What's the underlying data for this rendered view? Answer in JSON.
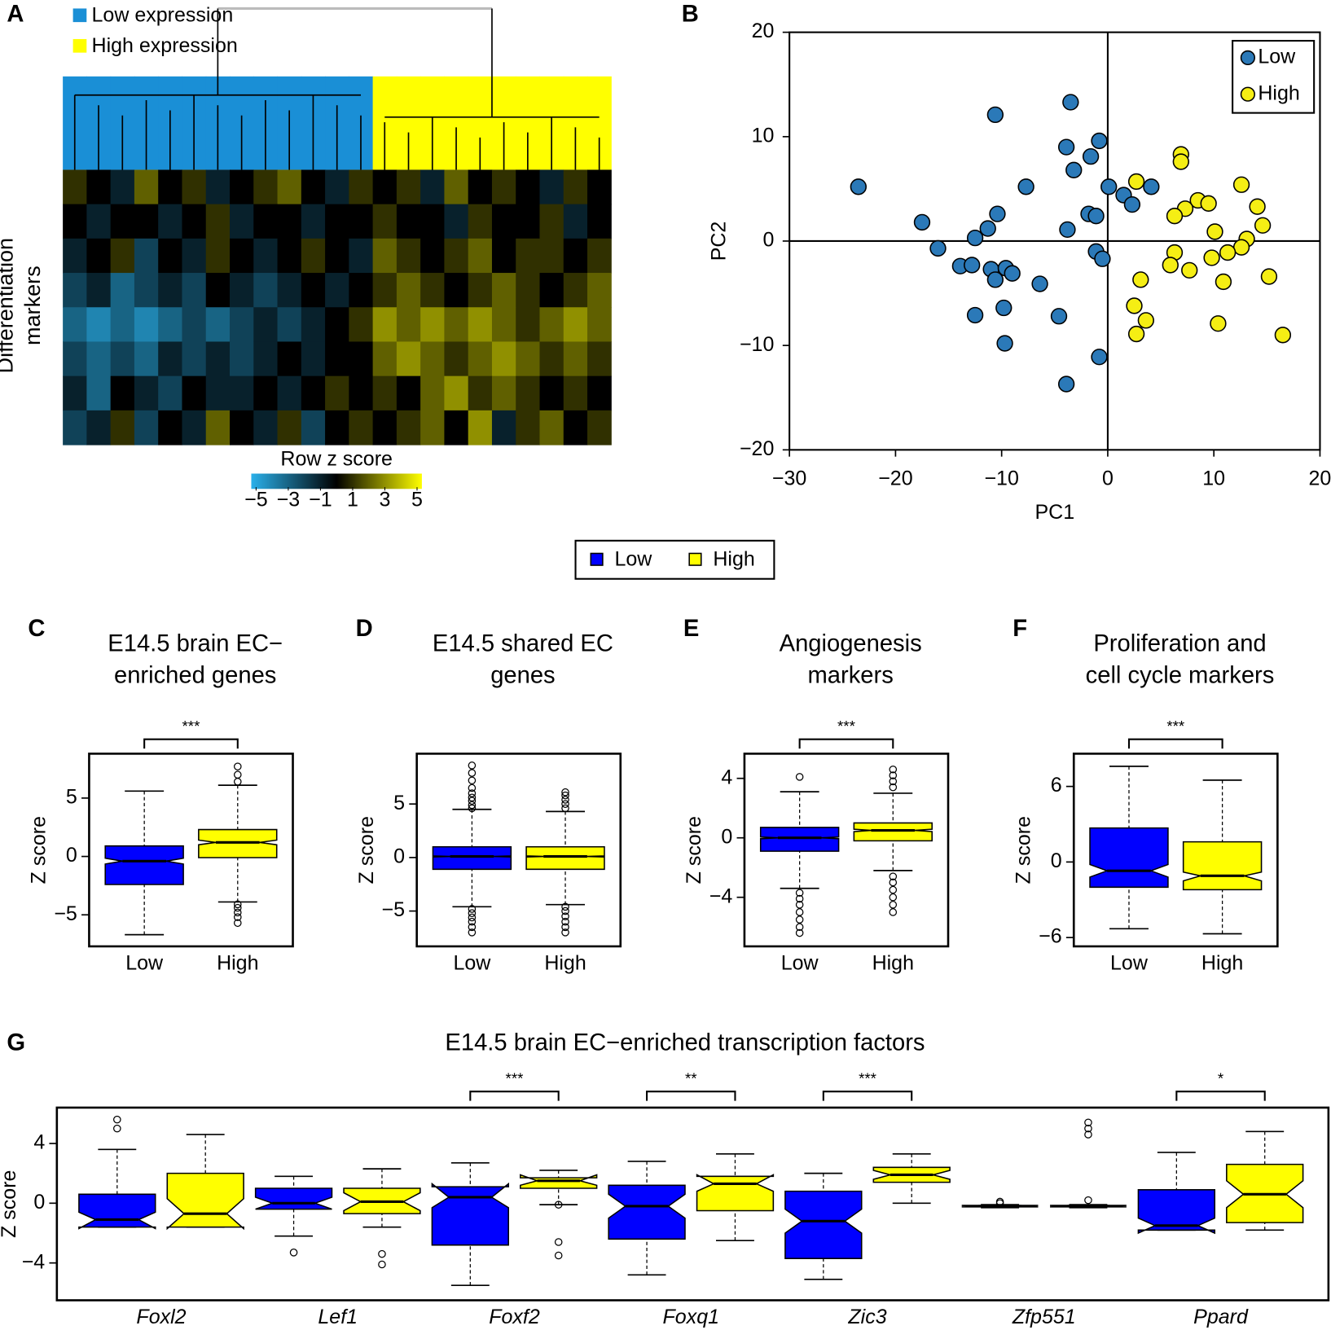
{
  "chart_data": [
    {
      "type": "heatmap",
      "panel": "A",
      "ylabel": [
        "Differentiation",
        "markers"
      ],
      "groups": [
        {
          "name": "Low expression",
          "color": "#1a8fd6"
        },
        {
          "name": "High expression",
          "color": "#ffff00"
        }
      ],
      "column_groups": [
        0,
        0,
        0,
        0,
        0,
        0,
        0,
        0,
        0,
        0,
        0,
        0,
        0,
        1,
        1,
        1,
        1,
        1,
        1,
        1,
        1,
        1,
        1
      ],
      "matrix": [
        [
          1,
          0,
          -1,
          2,
          0,
          1,
          -1,
          0,
          1,
          2,
          0,
          -1,
          1,
          0,
          1,
          -1,
          2,
          0,
          1,
          0,
          -1,
          1,
          0
        ],
        [
          0,
          -1,
          0,
          0,
          -1,
          0,
          1,
          -1,
          0,
          0,
          -1,
          0,
          0,
          1,
          0,
          0,
          -1,
          1,
          0,
          0,
          1,
          -1,
          0
        ],
        [
          -1,
          0,
          1,
          -2,
          0,
          -1,
          1,
          0,
          -1,
          0,
          1,
          0,
          -1,
          2,
          1,
          0,
          1,
          2,
          0,
          1,
          1,
          0,
          1
        ],
        [
          -2,
          -1,
          -3,
          -2,
          -1,
          -2,
          0,
          -1,
          -2,
          -1,
          0,
          -1,
          0,
          1,
          2,
          1,
          0,
          1,
          2,
          1,
          0,
          1,
          2
        ],
        [
          -3,
          -4,
          -3,
          -4,
          -3,
          -2,
          -3,
          -2,
          -1,
          -2,
          -1,
          0,
          1,
          3,
          2,
          3,
          2,
          3,
          2,
          1,
          2,
          3,
          2
        ],
        [
          -2,
          -3,
          -2,
          -3,
          -1,
          -2,
          -1,
          -2,
          -1,
          0,
          -1,
          0,
          0,
          2,
          3,
          2,
          1,
          2,
          3,
          2,
          1,
          2,
          1
        ],
        [
          -1,
          -3,
          0,
          -1,
          -2,
          0,
          -1,
          -1,
          0,
          -1,
          0,
          1,
          0,
          1,
          0,
          2,
          3,
          1,
          2,
          1,
          0,
          1,
          0
        ],
        [
          -2,
          -1,
          1,
          -2,
          0,
          -1,
          2,
          0,
          -1,
          1,
          -2,
          0,
          1,
          0,
          1,
          2,
          0,
          3,
          -1,
          1,
          2,
          0,
          1
        ]
      ],
      "colorscale": [
        "#2ab0ea",
        "#000000",
        "#ffff00"
      ],
      "colorbar_title": "Row z score",
      "clim": [
        -5.3,
        5.3
      ],
      "cticks": [
        {
          "value": -5,
          "label": "−5"
        },
        {
          "value": -3,
          "label": "−3"
        },
        {
          "value": -1,
          "label": "−1"
        },
        1,
        3,
        5
      ]
    },
    {
      "type": "scatter",
      "panel": "B",
      "xlabel": "PC1",
      "ylabel": "PC2",
      "xlim": [
        -30,
        20
      ],
      "ylim": [
        -20,
        20
      ],
      "xticks": [
        {
          "value": -30,
          "label": "−30"
        },
        {
          "value": -20,
          "label": "−20"
        },
        {
          "value": -10,
          "label": "−10"
        },
        0,
        10,
        20
      ],
      "yticks": [
        {
          "value": -20,
          "label": "−20"
        },
        {
          "value": -10,
          "label": "−10"
        },
        0,
        10,
        20
      ],
      "zero_lines": true,
      "legend": "upper right",
      "series": [
        {
          "name": "Low",
          "color": "#2b79b8",
          "x": [
            -23.5,
            -10.6,
            -3.5,
            -3.9,
            -0.8,
            -1.6,
            -3.2,
            -7.7,
            0.1,
            1.5,
            2.3,
            4.1,
            -10.4,
            -1.8,
            -1.1,
            -11.3,
            -3.8,
            -17.5,
            -12.5,
            -16.0,
            -1.1,
            -0.5,
            -13.9,
            -12.8,
            -11.0,
            -9.6,
            -9.0,
            -10.6,
            -6.4,
            -9.8,
            -12.5,
            -4.6,
            -9.7,
            -0.8,
            -3.9
          ],
          "y": [
            5.2,
            12.1,
            13.3,
            9.0,
            9.6,
            8.1,
            6.8,
            5.2,
            5.2,
            4.4,
            3.5,
            5.2,
            2.6,
            2.6,
            2.4,
            1.2,
            1.1,
            1.8,
            0.3,
            -0.7,
            -1.0,
            -1.7,
            -2.4,
            -2.3,
            -2.7,
            -2.6,
            -3.1,
            -3.7,
            -4.1,
            -6.4,
            -7.1,
            -7.2,
            -9.8,
            -11.1,
            -13.7
          ]
        },
        {
          "name": "High",
          "color": "#f5ee14",
          "x": [
            6.9,
            6.9,
            2.7,
            12.6,
            8.5,
            9.5,
            7.3,
            6.3,
            14.1,
            14.6,
            10.1,
            13.1,
            12.6,
            11.3,
            6.3,
            9.8,
            5.9,
            7.7,
            3.1,
            10.9,
            15.2,
            2.5,
            3.6,
            2.7,
            10.4,
            16.5
          ],
          "y": [
            8.3,
            7.6,
            5.7,
            5.4,
            3.9,
            3.6,
            3.1,
            2.4,
            3.3,
            1.5,
            0.9,
            0.2,
            -0.6,
            -1.1,
            -1.1,
            -1.6,
            -2.3,
            -2.8,
            -3.7,
            -3.9,
            -3.4,
            -6.2,
            -7.6,
            -8.9,
            -7.9,
            -9.0
          ]
        }
      ]
    },
    {
      "type": "box",
      "panel": "C",
      "title": [
        "E14.5 brain EC−",
        "enriched genes"
      ],
      "ylabel": "Z score",
      "categories": [
        "Low",
        "High"
      ],
      "significance": "***",
      "ylim": [
        -7.7,
        8.8
      ],
      "yticks": [
        {
          "value": -5,
          "label": "−5"
        },
        0,
        5
      ],
      "boxes": [
        {
          "color": "#0000ff",
          "whislo": -6.7,
          "q1": -2.4,
          "med": -0.4,
          "q3": 0.9,
          "whishi": 5.6,
          "notch": [
            -0.65,
            -0.15
          ]
        },
        {
          "color": "#ffff00",
          "whislo": -3.9,
          "q1": -0.1,
          "med": 1.2,
          "q3": 2.3,
          "whishi": 6.1,
          "notch": [
            1.0,
            1.4
          ],
          "outliers": [
            7.7,
            7.0,
            6.4,
            -4.1,
            -4.4,
            -4.8,
            -5.2,
            -5.7
          ]
        }
      ]
    },
    {
      "type": "box",
      "panel": "D",
      "title": [
        "E14.5 shared EC",
        "genes"
      ],
      "ylabel": "Z score",
      "categories": [
        "Low",
        "High"
      ],
      "ylim": [
        -8.3,
        9.7
      ],
      "yticks": [
        {
          "value": -5,
          "label": "−5"
        },
        0,
        5
      ],
      "boxes": [
        {
          "color": "#0000ff",
          "whislo": -4.6,
          "q1": -1.1,
          "med": 0.1,
          "q3": 1.0,
          "whishi": 4.5,
          "notch": [
            0.05,
            0.15
          ],
          "outliers": [
            4.6,
            4.9,
            5.3,
            5.6,
            6.0,
            6.5,
            7.2,
            7.9,
            8.6,
            -4.8,
            -5.2,
            -5.6,
            -6.0,
            -6.5,
            -7.0
          ]
        },
        {
          "color": "#ffff00",
          "whislo": -4.4,
          "q1": -1.1,
          "med": 0.1,
          "q3": 1.0,
          "whishi": 4.3,
          "notch": [
            0.05,
            0.15
          ],
          "outliers": [
            4.6,
            5.0,
            5.4,
            5.8,
            6.1,
            -4.6,
            -5.0,
            -5.5,
            -6.0,
            -6.5,
            -7.0
          ]
        }
      ]
    },
    {
      "type": "box",
      "panel": "E",
      "title": [
        "Angiogenesis",
        "markers"
      ],
      "ylabel": "Z score",
      "categories": [
        "Low",
        "High"
      ],
      "significance": "***",
      "ylim": [
        -7.3,
        5.66
      ],
      "yticks": [
        {
          "value": -4,
          "label": "−4"
        },
        0,
        4
      ],
      "boxes": [
        {
          "color": "#0000ff",
          "whislo": -3.4,
          "q1": -0.9,
          "med": 0.0,
          "q3": 0.7,
          "whishi": 3.1,
          "notch": [
            -0.06,
            0.06
          ],
          "outliers": [
            4.1,
            -3.7,
            -4.1,
            -4.5,
            -5.0,
            -5.5,
            -6.0,
            -6.4
          ]
        },
        {
          "color": "#ffff00",
          "whislo": -2.2,
          "q1": -0.2,
          "med": 0.5,
          "q3": 1.0,
          "whishi": 3.0,
          "notch": [
            0.42,
            0.58
          ],
          "outliers": [
            3.4,
            3.8,
            4.2,
            4.6,
            -2.6,
            -3.0,
            -3.5,
            -4.0,
            -4.5,
            -5.0
          ]
        }
      ]
    },
    {
      "type": "box",
      "panel": "F",
      "title": [
        "Proliferation and",
        "cell cycle markers"
      ],
      "ylabel": "Z score",
      "categories": [
        "Low",
        "High"
      ],
      "significance": "***",
      "ylim": [
        -6.7,
        8.6
      ],
      "yticks": [
        {
          "value": -6,
          "label": "−6"
        },
        0,
        6
      ],
      "boxes": [
        {
          "color": "#0000ff",
          "whislo": -5.3,
          "q1": -2.0,
          "med": -0.7,
          "q3": 2.7,
          "whishi": 7.6,
          "notch": [
            -1.2,
            -0.2
          ]
        },
        {
          "color": "#ffff00",
          "whislo": -5.7,
          "q1": -2.2,
          "med": -1.1,
          "q3": 1.6,
          "whishi": 6.5,
          "notch": [
            -1.5,
            -0.8
          ]
        }
      ]
    },
    {
      "type": "grouped_box",
      "panel": "G",
      "title": "E14.5 brain EC−enriched transcription factors",
      "ylabel": "Z score",
      "categories": [
        "Foxl2",
        "Lef1",
        "Foxf2",
        "Foxq1",
        "Zic3",
        "Zfp551",
        "Ppard"
      ],
      "significance": [
        null,
        null,
        "***",
        "**",
        "***",
        null,
        "*"
      ],
      "ylim": [
        -6.5,
        6.4
      ],
      "yticks": [
        {
          "value": -4,
          "label": "−4"
        },
        0,
        4
      ],
      "series": [
        {
          "name": "Low",
          "color": "#0000ff",
          "boxes": [
            {
              "whislo": -1.6,
              "q1": -1.6,
              "med": -1.1,
              "q3": 0.6,
              "whishi": 3.6,
              "notch": [
                -1.7,
                -0.6
              ],
              "outliers": [
                5.6,
                5.0
              ]
            },
            {
              "whislo": -2.2,
              "q1": -0.4,
              "med": 0.0,
              "q3": 1.0,
              "whishi": 1.8,
              "notch": [
                -0.4,
                0.4
              ],
              "outliers": [
                -3.3
              ]
            },
            {
              "whislo": -5.5,
              "q1": -2.8,
              "med": 0.4,
              "q3": 1.1,
              "whishi": 2.7,
              "notch": [
                -0.3,
                1.3
              ]
            },
            {
              "whislo": -4.8,
              "q1": -2.4,
              "med": -0.2,
              "q3": 1.2,
              "whishi": 2.8,
              "notch": [
                -1.0,
                0.6
              ]
            },
            {
              "whislo": -5.1,
              "q1": -3.7,
              "med": -1.2,
              "q3": 0.8,
              "whishi": 2.0,
              "notch": [
                -2.0,
                -0.4
              ]
            },
            {
              "whislo": -0.3,
              "q1": -0.25,
              "med": -0.2,
              "q3": -0.15,
              "whishi": -0.1,
              "notch": [
                -0.25,
                -0.15
              ],
              "outliers": [
                0.1,
                0.0
              ]
            },
            {
              "whislo": -1.8,
              "q1": -1.8,
              "med": -1.5,
              "q3": 0.9,
              "whishi": 3.4,
              "notch": [
                -2.0,
                -1.0
              ]
            }
          ]
        },
        {
          "name": "High",
          "color": "#ffff00",
          "boxes": [
            {
              "whislo": -1.6,
              "q1": -1.6,
              "med": -0.7,
              "q3": 2.0,
              "whishi": 4.6,
              "notch": [
                -1.7,
                0.3
              ]
            },
            {
              "whislo": -1.6,
              "q1": -0.7,
              "med": 0.1,
              "q3": 1.0,
              "whishi": 2.3,
              "notch": [
                -0.5,
                0.7
              ],
              "outliers": [
                -3.4,
                -4.1
              ]
            },
            {
              "whislo": -0.1,
              "q1": 1.0,
              "med": 1.5,
              "q3": 1.7,
              "whishi": 2.2,
              "notch": [
                1.2,
                1.9
              ],
              "outliers": [
                -0.1,
                -2.6,
                -3.5
              ]
            },
            {
              "whislo": -2.5,
              "q1": -0.5,
              "med": 1.3,
              "q3": 1.8,
              "whishi": 3.3,
              "notch": [
                0.8,
                1.9
              ]
            },
            {
              "whislo": 0.0,
              "q1": 1.4,
              "med": 1.9,
              "q3": 2.4,
              "whishi": 3.3,
              "notch": [
                1.6,
                2.2
              ]
            },
            {
              "whislo": -0.3,
              "q1": -0.25,
              "med": -0.2,
              "q3": -0.15,
              "whishi": -0.1,
              "notch": [
                -0.25,
                -0.15
              ],
              "outliers": [
                5.4,
                5.0,
                4.6,
                0.2
              ]
            },
            {
              "whislo": -1.8,
              "q1": -1.3,
              "med": 0.6,
              "q3": 2.6,
              "whishi": 4.8,
              "notch": [
                -0.3,
                1.5
              ]
            }
          ]
        }
      ]
    }
  ]
}
